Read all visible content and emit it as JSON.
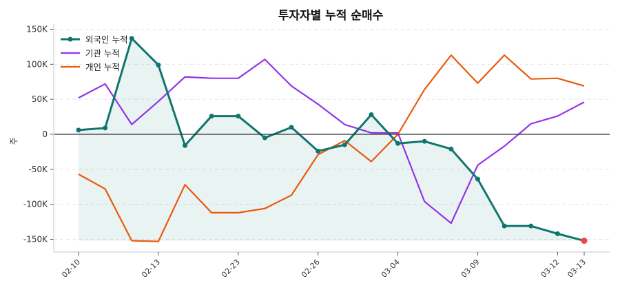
{
  "chart_data": {
    "type": "line",
    "title": "투자자별 누적 순매수",
    "xlabel": "",
    "ylabel": "주",
    "ylim": [
      -165000,
      160000
    ],
    "yticks": [
      150000,
      100000,
      50000,
      0,
      -50000,
      -100000,
      -150000
    ],
    "ytick_labels": [
      "150K",
      "100K",
      "50K",
      "0",
      "-50K",
      "-100K",
      "-150K"
    ],
    "categories": [
      "02-10",
      "",
      "",
      "02-13",
      "",
      "",
      "02-23",
      "",
      "",
      "02-26",
      "",
      "",
      "03-04",
      "",
      "",
      "03-09",
      "",
      "",
      "03-12",
      "03-13"
    ],
    "grid": "horizontal dashed",
    "legend_position": "top-left",
    "series": [
      {
        "name": "외국인 누적",
        "color": "#0f766e",
        "markers": true,
        "fill": true,
        "values": [
          6000,
          9000,
          137000,
          99000,
          -16000,
          26000,
          26000,
          -5000,
          10000,
          -24000,
          -15000,
          28000,
          -13000,
          -10000,
          -21000,
          -64000,
          -131000,
          -131000,
          -142000,
          -152000
        ]
      },
      {
        "name": "기관 누적",
        "color": "#9333ea",
        "markers": false,
        "values": [
          52000,
          72000,
          14000,
          47000,
          82000,
          80000,
          80000,
          107000,
          69000,
          43000,
          14000,
          2000,
          2000,
          -96000,
          -127000,
          -44000,
          -17000,
          15000,
          26000,
          46000
        ]
      },
      {
        "name": "개인 누적",
        "color": "#ea580c",
        "markers": false,
        "values": [
          -57000,
          -78000,
          -152000,
          -153000,
          -72000,
          -112000,
          -112000,
          -106000,
          -87000,
          -29000,
          -9000,
          -39000,
          0,
          64000,
          113000,
          73000,
          113000,
          79000,
          80000,
          69000
        ]
      }
    ],
    "last_point_highlight_color": "#ef4444"
  }
}
